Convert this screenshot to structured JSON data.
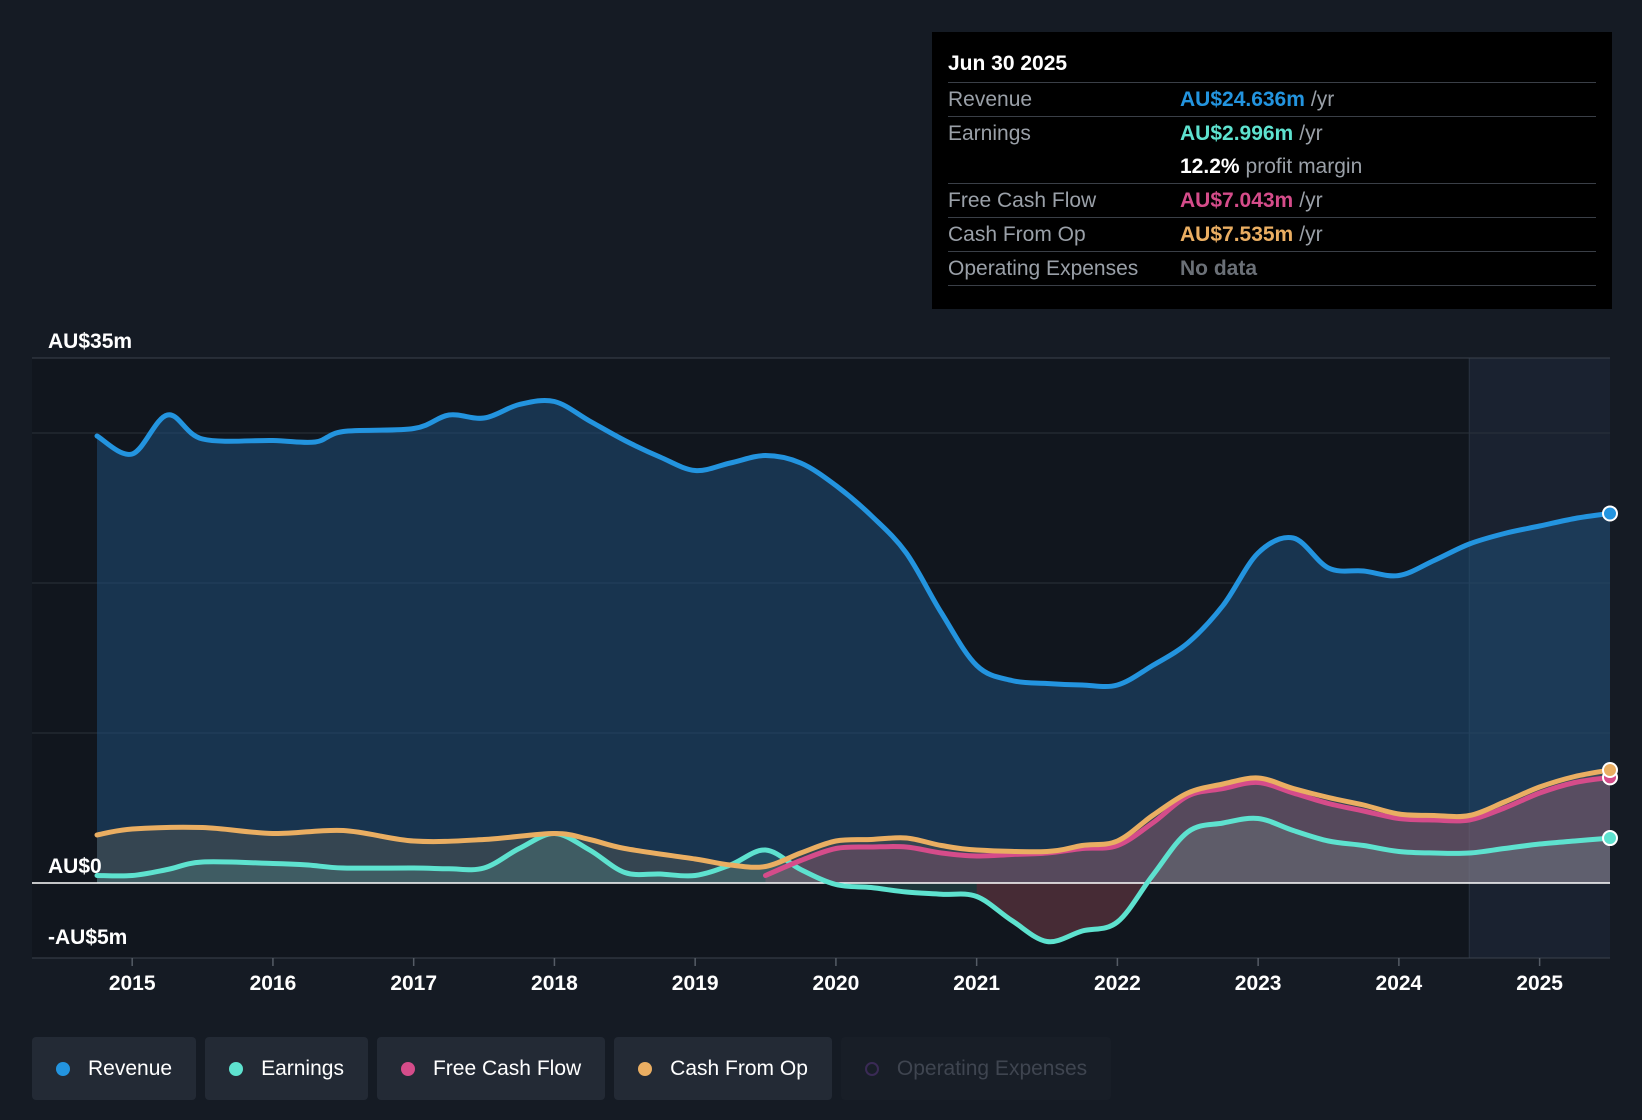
{
  "chart_data": {
    "type": "area",
    "y_labels": [
      "AU$35m",
      "AU$0",
      "-AU$5m"
    ],
    "ylim": [
      -5,
      35
    ],
    "xlim": [
      2014.75,
      2025.5
    ],
    "x_ticks": [
      "2015",
      "2016",
      "2017",
      "2018",
      "2019",
      "2020",
      "2021",
      "2022",
      "2023",
      "2024",
      "2025"
    ],
    "forecast_start": 2024.5,
    "series": [
      {
        "name": "Revenue",
        "color": "#2394df",
        "fill": true,
        "points": [
          [
            2014.75,
            29.8
          ],
          [
            2015.0,
            28.6
          ],
          [
            2015.25,
            31.2
          ],
          [
            2015.5,
            29.6
          ],
          [
            2016.0,
            29.5
          ],
          [
            2016.3,
            29.4
          ],
          [
            2016.5,
            30.1
          ],
          [
            2017.0,
            30.3
          ],
          [
            2017.25,
            31.2
          ],
          [
            2017.5,
            31.0
          ],
          [
            2017.75,
            31.9
          ],
          [
            2018.0,
            32.1
          ],
          [
            2018.25,
            30.8
          ],
          [
            2018.5,
            29.5
          ],
          [
            2018.75,
            28.4
          ],
          [
            2019.0,
            27.5
          ],
          [
            2019.25,
            28.0
          ],
          [
            2019.5,
            28.5
          ],
          [
            2019.75,
            28.0
          ],
          [
            2020.0,
            26.5
          ],
          [
            2020.25,
            24.5
          ],
          [
            2020.5,
            22.0
          ],
          [
            2020.75,
            18.0
          ],
          [
            2021.0,
            14.5
          ],
          [
            2021.25,
            13.5
          ],
          [
            2021.5,
            13.3
          ],
          [
            2021.75,
            13.2
          ],
          [
            2022.0,
            13.2
          ],
          [
            2022.25,
            14.5
          ],
          [
            2022.5,
            16.0
          ],
          [
            2022.75,
            18.5
          ],
          [
            2023.0,
            22.0
          ],
          [
            2023.25,
            23.0
          ],
          [
            2023.5,
            21.0
          ],
          [
            2023.75,
            20.8
          ],
          [
            2024.0,
            20.5
          ],
          [
            2024.25,
            21.5
          ],
          [
            2024.5,
            22.6
          ],
          [
            2024.75,
            23.3
          ],
          [
            2025.0,
            23.8
          ],
          [
            2025.25,
            24.3
          ],
          [
            2025.5,
            24.636
          ]
        ]
      },
      {
        "name": "Earnings",
        "color": "#5ee2cf",
        "fill": true,
        "points": [
          [
            2014.75,
            0.5
          ],
          [
            2015.0,
            0.5
          ],
          [
            2015.25,
            0.9
          ],
          [
            2015.5,
            1.4
          ],
          [
            2016.0,
            1.3
          ],
          [
            2016.25,
            1.2
          ],
          [
            2016.5,
            1.0
          ],
          [
            2017.0,
            1.0
          ],
          [
            2017.25,
            0.95
          ],
          [
            2017.5,
            1.0
          ],
          [
            2017.75,
            2.3
          ],
          [
            2018.0,
            3.3
          ],
          [
            2018.25,
            2.2
          ],
          [
            2018.5,
            0.7
          ],
          [
            2018.75,
            0.6
          ],
          [
            2019.0,
            0.5
          ],
          [
            2019.25,
            1.2
          ],
          [
            2019.5,
            2.2
          ],
          [
            2019.75,
            0.9
          ],
          [
            2020.0,
            -0.1
          ],
          [
            2020.25,
            -0.3
          ],
          [
            2020.5,
            -0.6
          ],
          [
            2020.75,
            -0.75
          ],
          [
            2021.0,
            -0.9
          ],
          [
            2021.25,
            -2.5
          ],
          [
            2021.5,
            -3.9
          ],
          [
            2021.75,
            -3.2
          ],
          [
            2022.0,
            -2.6
          ],
          [
            2022.25,
            0.5
          ],
          [
            2022.5,
            3.4
          ],
          [
            2022.75,
            4.0
          ],
          [
            2023.0,
            4.3
          ],
          [
            2023.25,
            3.5
          ],
          [
            2023.5,
            2.8
          ],
          [
            2023.75,
            2.5
          ],
          [
            2024.0,
            2.1
          ],
          [
            2024.25,
            2.0
          ],
          [
            2024.5,
            2.0
          ],
          [
            2024.75,
            2.3
          ],
          [
            2025.0,
            2.6
          ],
          [
            2025.25,
            2.8
          ],
          [
            2025.5,
            2.996
          ]
        ]
      },
      {
        "name": "Free Cash Flow",
        "color": "#d54c8a",
        "fill": true,
        "points": [
          [
            2019.5,
            0.5
          ],
          [
            2019.75,
            1.5
          ],
          [
            2020.0,
            2.3
          ],
          [
            2020.25,
            2.4
          ],
          [
            2020.5,
            2.4
          ],
          [
            2020.75,
            2.0
          ],
          [
            2021.0,
            1.8
          ],
          [
            2021.25,
            1.9
          ],
          [
            2021.5,
            2.0
          ],
          [
            2021.75,
            2.3
          ],
          [
            2022.0,
            2.5
          ],
          [
            2022.25,
            4.0
          ],
          [
            2022.5,
            5.8
          ],
          [
            2022.75,
            6.3
          ],
          [
            2023.0,
            6.7
          ],
          [
            2023.25,
            6.0
          ],
          [
            2023.5,
            5.3
          ],
          [
            2023.75,
            4.8
          ],
          [
            2024.0,
            4.3
          ],
          [
            2024.25,
            4.2
          ],
          [
            2024.5,
            4.2
          ],
          [
            2024.75,
            5.0
          ],
          [
            2025.0,
            6.0
          ],
          [
            2025.25,
            6.7
          ],
          [
            2025.5,
            7.043
          ]
        ]
      },
      {
        "name": "Cash From Op",
        "color": "#eaae62",
        "fill": true,
        "points": [
          [
            2014.75,
            3.2
          ],
          [
            2015.0,
            3.6
          ],
          [
            2015.5,
            3.7
          ],
          [
            2016.0,
            3.3
          ],
          [
            2016.5,
            3.5
          ],
          [
            2017.0,
            2.8
          ],
          [
            2017.5,
            2.9
          ],
          [
            2018.0,
            3.3
          ],
          [
            2018.25,
            2.9
          ],
          [
            2018.5,
            2.3
          ],
          [
            2019.0,
            1.6
          ],
          [
            2019.25,
            1.2
          ],
          [
            2019.5,
            1.1
          ],
          [
            2019.75,
            2.0
          ],
          [
            2020.0,
            2.8
          ],
          [
            2020.25,
            2.9
          ],
          [
            2020.5,
            3.0
          ],
          [
            2020.75,
            2.5
          ],
          [
            2021.0,
            2.2
          ],
          [
            2021.5,
            2.1
          ],
          [
            2021.75,
            2.5
          ],
          [
            2022.0,
            2.8
          ],
          [
            2022.25,
            4.5
          ],
          [
            2022.5,
            6.0
          ],
          [
            2022.75,
            6.6
          ],
          [
            2023.0,
            7.0
          ],
          [
            2023.25,
            6.3
          ],
          [
            2023.5,
            5.7
          ],
          [
            2023.75,
            5.2
          ],
          [
            2024.0,
            4.6
          ],
          [
            2024.25,
            4.5
          ],
          [
            2024.5,
            4.5
          ],
          [
            2024.75,
            5.4
          ],
          [
            2025.0,
            6.4
          ],
          [
            2025.25,
            7.1
          ],
          [
            2025.5,
            7.535
          ]
        ]
      }
    ]
  },
  "tooltip": {
    "date": "Jun 30 2025",
    "revenue": {
      "label": "Revenue",
      "value": "AU$24.636m",
      "unit": "/yr",
      "color": "#2394df"
    },
    "earnings": {
      "label": "Earnings",
      "value": "AU$2.996m",
      "unit": "/yr",
      "color": "#5ee2cf"
    },
    "margin": {
      "value": "12.2%",
      "unit": "profit margin"
    },
    "fcf": {
      "label": "Free Cash Flow",
      "value": "AU$7.043m",
      "unit": "/yr",
      "color": "#d54c8a"
    },
    "cfo": {
      "label": "Cash From Op",
      "value": "AU$7.535m",
      "unit": "/yr",
      "color": "#eaae62"
    },
    "opex": {
      "label": "Operating Expenses",
      "value": "No data"
    }
  },
  "legend": [
    {
      "label": "Revenue",
      "color": "#2394df",
      "enabled": true
    },
    {
      "label": "Earnings",
      "color": "#5ee2cf",
      "enabled": true
    },
    {
      "label": "Free Cash Flow",
      "color": "#d54c8a",
      "enabled": true
    },
    {
      "label": "Cash From Op",
      "color": "#eaae62",
      "enabled": true
    },
    {
      "label": "Operating Expenses",
      "color": "#3a2a55",
      "enabled": false
    }
  ]
}
